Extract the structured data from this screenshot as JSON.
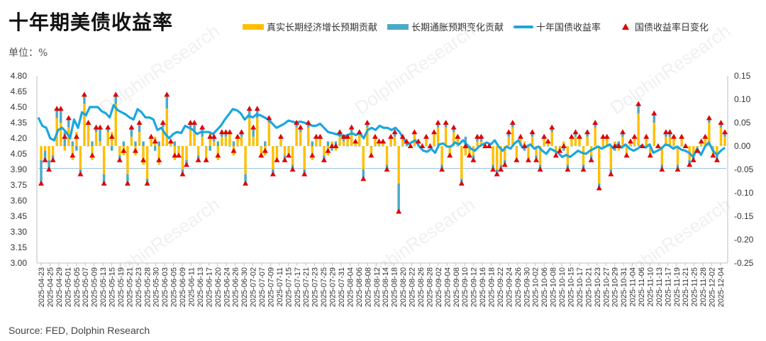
{
  "title": "十年期美债收益率",
  "unit_label": "单位：%",
  "source": "Source: FED, Dolphin Research",
  "watermark": "DolphinResearch",
  "legend": {
    "real": "真实长期经济增长预期贡献",
    "infl": "长期通胀预期变化贡献",
    "yield": "十年国债收益率",
    "change": "国债收益率日变化"
  },
  "colors": {
    "real": "#ffbf00",
    "infl": "#4ba9c8",
    "yield": "#1aa7e0",
    "change": "#e00000",
    "baseline": "#9cc3e0"
  },
  "chart_data": {
    "type": "bar+line",
    "x_tick_labels": [
      "2025-04-23",
      "2025-04-25",
      "2025-04-29",
      "2025-05-01",
      "2025-05-05",
      "2025-05-07",
      "2025-05-09",
      "2025-05-13",
      "2025-05-15",
      "2025-05-19",
      "2025-05-21",
      "2025-05-23",
      "2025-05-28",
      "2025-05-30",
      "2025-06-03",
      "2025-06-05",
      "2025-06-09",
      "2025-06-11",
      "2025-06-13",
      "2025-06-17",
      "2025-06-20",
      "2025-06-24",
      "2025-06-26",
      "2025-06-30",
      "2025-07-02",
      "2025-07-07",
      "2025-07-09",
      "2025-07-11",
      "2025-07-15",
      "2025-07-17",
      "2025-07-21",
      "2025-07-23",
      "2025-07-25",
      "2025-07-29",
      "2025-07-31",
      "2025-08-04",
      "2025-08-06",
      "2025-08-08",
      "2025-08-12",
      "2025-08-14",
      "2025-08-18",
      "2025-08-20",
      "2025-08-22",
      "2025-08-26",
      "2025-08-28",
      "2025-09-02",
      "2025-09-04",
      "2025-09-08",
      "2025-09-10",
      "2025-09-12",
      "2025-09-16",
      "2025-09-18",
      "2025-09-22",
      "2025-09-24",
      "2025-09-26",
      "2025-09-30",
      "2025-10-02",
      "2025-10-06",
      "2025-10-08",
      "2025-10-10",
      "2025-10-15",
      "2025-10-17",
      "2025-10-21",
      "2025-10-23",
      "2025-10-27",
      "2025-10-29",
      "2025-10-31",
      "2025-11-04",
      "2025-11-06",
      "2025-11-10",
      "2025-11-13",
      "2025-11-17",
      "2025-11-19",
      "2025-11-21",
      "2025-11-25",
      "2025-11-28",
      "2025-12-02",
      "2025-12-04"
    ],
    "y_left": {
      "min": 3.0,
      "max": 4.8,
      "ticks": [
        "3.00",
        "3.15",
        "3.30",
        "3.45",
        "3.60",
        "3.75",
        "3.90",
        "4.05",
        "4.20",
        "4.35",
        "4.50",
        "4.65",
        "4.80"
      ]
    },
    "y_right": {
      "min": -0.25,
      "max": 0.15,
      "ticks": [
        "-0.25",
        "-0.20",
        "-0.15",
        "-0.10",
        "-0.05",
        "0.00",
        "0.05",
        "0.10",
        "0.15"
      ]
    },
    "yield_10y": [
      4.4,
      4.32,
      4.3,
      4.2,
      4.18,
      4.28,
      4.3,
      4.26,
      4.2,
      4.38,
      4.3,
      4.45,
      4.42,
      4.5,
      4.5,
      4.5,
      4.46,
      4.44,
      4.4,
      4.52,
      4.47,
      4.45,
      4.43,
      4.4,
      4.38,
      4.48,
      4.45,
      4.4,
      4.4,
      4.38,
      4.28,
      4.3,
      4.24,
      4.2,
      4.24,
      4.26,
      4.25,
      4.32,
      4.3,
      4.28,
      4.24,
      4.26,
      4.26,
      4.26,
      4.24,
      4.28,
      4.32,
      4.38,
      4.43,
      4.48,
      4.47,
      4.44,
      4.38,
      4.42,
      4.4,
      4.43,
      4.42,
      4.4,
      4.38,
      4.34,
      4.3,
      4.32,
      4.34,
      4.37,
      4.36,
      4.35,
      4.36,
      4.35,
      4.34,
      4.32,
      4.32,
      4.34,
      4.3,
      4.26,
      4.25,
      4.24,
      4.23,
      4.22,
      4.23,
      4.25,
      4.23,
      4.25,
      4.2,
      4.28,
      4.3,
      4.28,
      4.32,
      4.3,
      4.3,
      4.28,
      4.3,
      4.26,
      4.2,
      4.14,
      4.16,
      4.18,
      4.12,
      4.08,
      4.07,
      4.1,
      4.06,
      4.14,
      4.15,
      4.12,
      4.12,
      4.16,
      4.14,
      4.18,
      4.14,
      4.1,
      4.08,
      4.12,
      4.14,
      4.16,
      4.14,
      4.18,
      4.12,
      4.08,
      4.12,
      4.1,
      4.15,
      4.18,
      4.11,
      4.12,
      4.14,
      4.1,
      4.12,
      4.08,
      4.05,
      4.1,
      4.08,
      4.06,
      4.02,
      4.04,
      4.02,
      4.05,
      4.08,
      4.06,
      4.05,
      4.08,
      4.1,
      4.12,
      4.1,
      4.12,
      4.14,
      4.1,
      4.14,
      4.11,
      4.14,
      4.1,
      4.08,
      4.1,
      4.13,
      4.11,
      4.14,
      4.06,
      4.08,
      4.1,
      4.14,
      4.13,
      4.1,
      4.12,
      4.09,
      4.08,
      4.06,
      4.02,
      4.1,
      4.04,
      4.12,
      4.16,
      4.08,
      4.04,
      4.08,
      4.11
    ],
    "daily_change": [
      -0.08,
      -0.03,
      -0.05,
      -0.03,
      0.08,
      0.08,
      0.02,
      0.06,
      -0.02,
      0.02,
      -0.06,
      0.11,
      0.05,
      -0.02,
      0.04,
      0.04,
      -0.08,
      0.04,
      0.02,
      0.11,
      -0.03,
      -0.01,
      -0.08,
      0.04,
      -0.01,
      0.05,
      -0.03,
      -0.08,
      0.02,
      0.01,
      -0.03,
      0.05,
      0.11,
      0.01,
      -0.02,
      -0.02,
      -0.06,
      -0.04,
      0.05,
      0.05,
      -0.03,
      0.04,
      -0.03,
      0.02,
      0.02,
      -0.02,
      0.03,
      0.03,
      0.03,
      -0.01,
      0.02,
      0.03,
      -0.08,
      0.08,
      0.04,
      0.08,
      -0.02,
      -0.01,
      0.06,
      -0.06,
      -0.03,
      0.02,
      -0.03,
      -0.02,
      -0.05,
      0.05,
      0.04,
      -0.06,
      0.05,
      -0.02,
      0.02,
      0.02,
      -0.03,
      -0.01,
      0.0,
      0.0,
      0.03,
      0.02,
      0.02,
      0.04,
      0.01,
      0.03,
      -0.07,
      0.05,
      -0.02,
      0.02,
      0.01,
      0.01,
      -0.05,
      0.02,
      0.03,
      -0.14,
      0.02,
      0.01,
      0.0,
      0.03,
      0.01,
      0.0,
      0.02,
      0.0,
      0.03,
      0.05,
      -0.05,
      0.05,
      -0.02,
      0.04,
      0.02,
      -0.08,
      0.0,
      -0.02,
      -0.03,
      0.02,
      0.02,
      0.0,
      0.0,
      -0.05,
      -0.06,
      -0.05,
      -0.04,
      0.03,
      0.05,
      -0.03,
      0.02,
      0.0,
      -0.03,
      0.03,
      -0.03,
      -0.05,
      0.02,
      0.01,
      0.04,
      -0.02,
      -0.01,
      0.0,
      -0.05,
      0.02,
      0.03,
      0.02,
      -0.05,
      0.03,
      -0.03,
      0.05,
      -0.09,
      0.02,
      0.02,
      -0.06,
      0.0,
      0.0,
      0.03,
      -0.02,
      0.01,
      0.02,
      0.09,
      0.0,
      0.02,
      -0.02,
      0.07,
      0.0,
      -0.05,
      0.03,
      0.03,
      0.02,
      -0.05,
      0.02,
      0.0,
      -0.04,
      -0.03,
      -0.01,
      0.01,
      0.02,
      0.06,
      -0.02,
      -0.03,
      0.05,
      0.03
    ],
    "real_growth_contrib": [
      -0.03,
      -0.01,
      -0.03,
      -0.02,
      0.06,
      0.05,
      -0.01,
      0.04,
      -0.03,
      0.03,
      -0.05,
      0.09,
      0.05,
      -0.03,
      0.03,
      0.01,
      -0.06,
      0.03,
      0.03,
      0.09,
      -0.02,
      -0.02,
      -0.06,
      0.02,
      -0.02,
      0.03,
      -0.04,
      -0.07,
      0.02,
      0.02,
      -0.04,
      0.04,
      0.08,
      0.01,
      -0.03,
      -0.02,
      -0.05,
      -0.03,
      0.04,
      0.03,
      -0.02,
      0.02,
      -0.03,
      0.03,
      0.01,
      -0.03,
      0.02,
      0.02,
      0.03,
      -0.02,
      0.02,
      0.02,
      -0.06,
      0.06,
      0.02,
      0.06,
      -0.02,
      -0.02,
      0.05,
      -0.05,
      -0.03,
      0.02,
      -0.02,
      -0.02,
      -0.04,
      0.04,
      0.03,
      -0.05,
      0.04,
      -0.03,
      0.02,
      0.02,
      -0.02,
      -0.02,
      0.01,
      -0.01,
      0.02,
      0.01,
      0.02,
      0.03,
      0.01,
      0.03,
      -0.05,
      0.04,
      -0.02,
      0.02,
      0.01,
      0.01,
      -0.04,
      0.02,
      0.02,
      -0.08,
      0.02,
      0.01,
      0.0,
      0.03,
      0.01,
      0.0,
      0.02,
      0.0,
      0.03,
      0.04,
      -0.04,
      0.04,
      -0.02,
      0.03,
      0.02,
      -0.07,
      -0.02,
      -0.02,
      -0.02,
      0.01,
      0.01,
      0.0,
      0.0,
      -0.04,
      -0.05,
      -0.04,
      -0.03,
      0.02,
      0.04,
      -0.03,
      0.02,
      0.01,
      -0.03,
      0.02,
      -0.02,
      -0.04,
      0.02,
      0.01,
      0.03,
      -0.02,
      -0.01,
      0.01,
      -0.04,
      0.02,
      0.02,
      0.02,
      -0.04,
      0.02,
      -0.02,
      0.04,
      -0.08,
      0.02,
      0.02,
      -0.05,
      0.01,
      -0.01,
      0.02,
      -0.02,
      0.01,
      0.02,
      0.07,
      0.0,
      0.02,
      -0.02,
      0.05,
      0.0,
      -0.04,
      0.02,
      0.02,
      0.02,
      -0.04,
      0.02,
      0.0,
      -0.03,
      -0.02,
      -0.01,
      0.01,
      0.02,
      0.05,
      -0.02,
      -0.02,
      0.04,
      0.02
    ],
    "inflation_contrib": [
      -0.05,
      -0.02,
      -0.02,
      -0.01,
      0.02,
      0.03,
      0.03,
      0.02,
      0.01,
      -0.01,
      -0.01,
      0.02,
      0.0,
      0.01,
      0.01,
      0.03,
      -0.02,
      0.01,
      -0.01,
      0.02,
      -0.01,
      0.01,
      -0.02,
      0.02,
      0.01,
      0.02,
      0.01,
      -0.01,
      0.0,
      -0.01,
      0.01,
      0.01,
      0.03,
      0.0,
      0.01,
      0.0,
      -0.01,
      -0.01,
      0.01,
      0.02,
      -0.01,
      0.02,
      0.0,
      -0.01,
      0.01,
      0.01,
      0.01,
      0.01,
      0.0,
      0.01,
      0.0,
      0.01,
      -0.02,
      0.02,
      0.02,
      0.02,
      0.0,
      0.01,
      0.01,
      -0.01,
      0.0,
      0.0,
      -0.01,
      0.0,
      -0.01,
      0.01,
      0.01,
      -0.01,
      0.01,
      0.01,
      0.0,
      0.0,
      -0.01,
      0.01,
      -0.01,
      0.01,
      0.01,
      0.01,
      0.0,
      0.01,
      0.0,
      0.0,
      -0.02,
      0.01,
      0.0,
      0.0,
      0.0,
      0.0,
      -0.01,
      0.0,
      0.01,
      -0.06,
      0.0,
      0.0,
      0.0,
      0.0,
      0.0,
      0.0,
      0.0,
      0.0,
      0.0,
      0.01,
      -0.01,
      0.01,
      0.0,
      0.01,
      0.0,
      -0.01,
      0.02,
      0.0,
      -0.01,
      0.01,
      0.01,
      0.0,
      0.0,
      -0.01,
      -0.01,
      -0.01,
      -0.01,
      0.01,
      0.01,
      0.0,
      0.0,
      -0.01,
      0.0,
      0.01,
      -0.01,
      -0.01,
      0.0,
      0.0,
      0.01,
      0.0,
      0.0,
      -0.01,
      -0.01,
      0.0,
      0.01,
      0.0,
      -0.01,
      0.01,
      -0.01,
      0.01,
      -0.01,
      0.0,
      0.0,
      -0.01,
      -0.01,
      0.01,
      0.01,
      0.0,
      0.0,
      0.0,
      0.02,
      0.0,
      0.0,
      0.0,
      0.02,
      0.0,
      -0.01,
      0.01,
      0.01,
      0.0,
      -0.01,
      0.0,
      0.0,
      -0.01,
      -0.01,
      0.0,
      0.0,
      0.0,
      0.01,
      0.0,
      -0.01,
      0.01,
      0.01
    ],
    "baseline_yield": 3.91
  }
}
